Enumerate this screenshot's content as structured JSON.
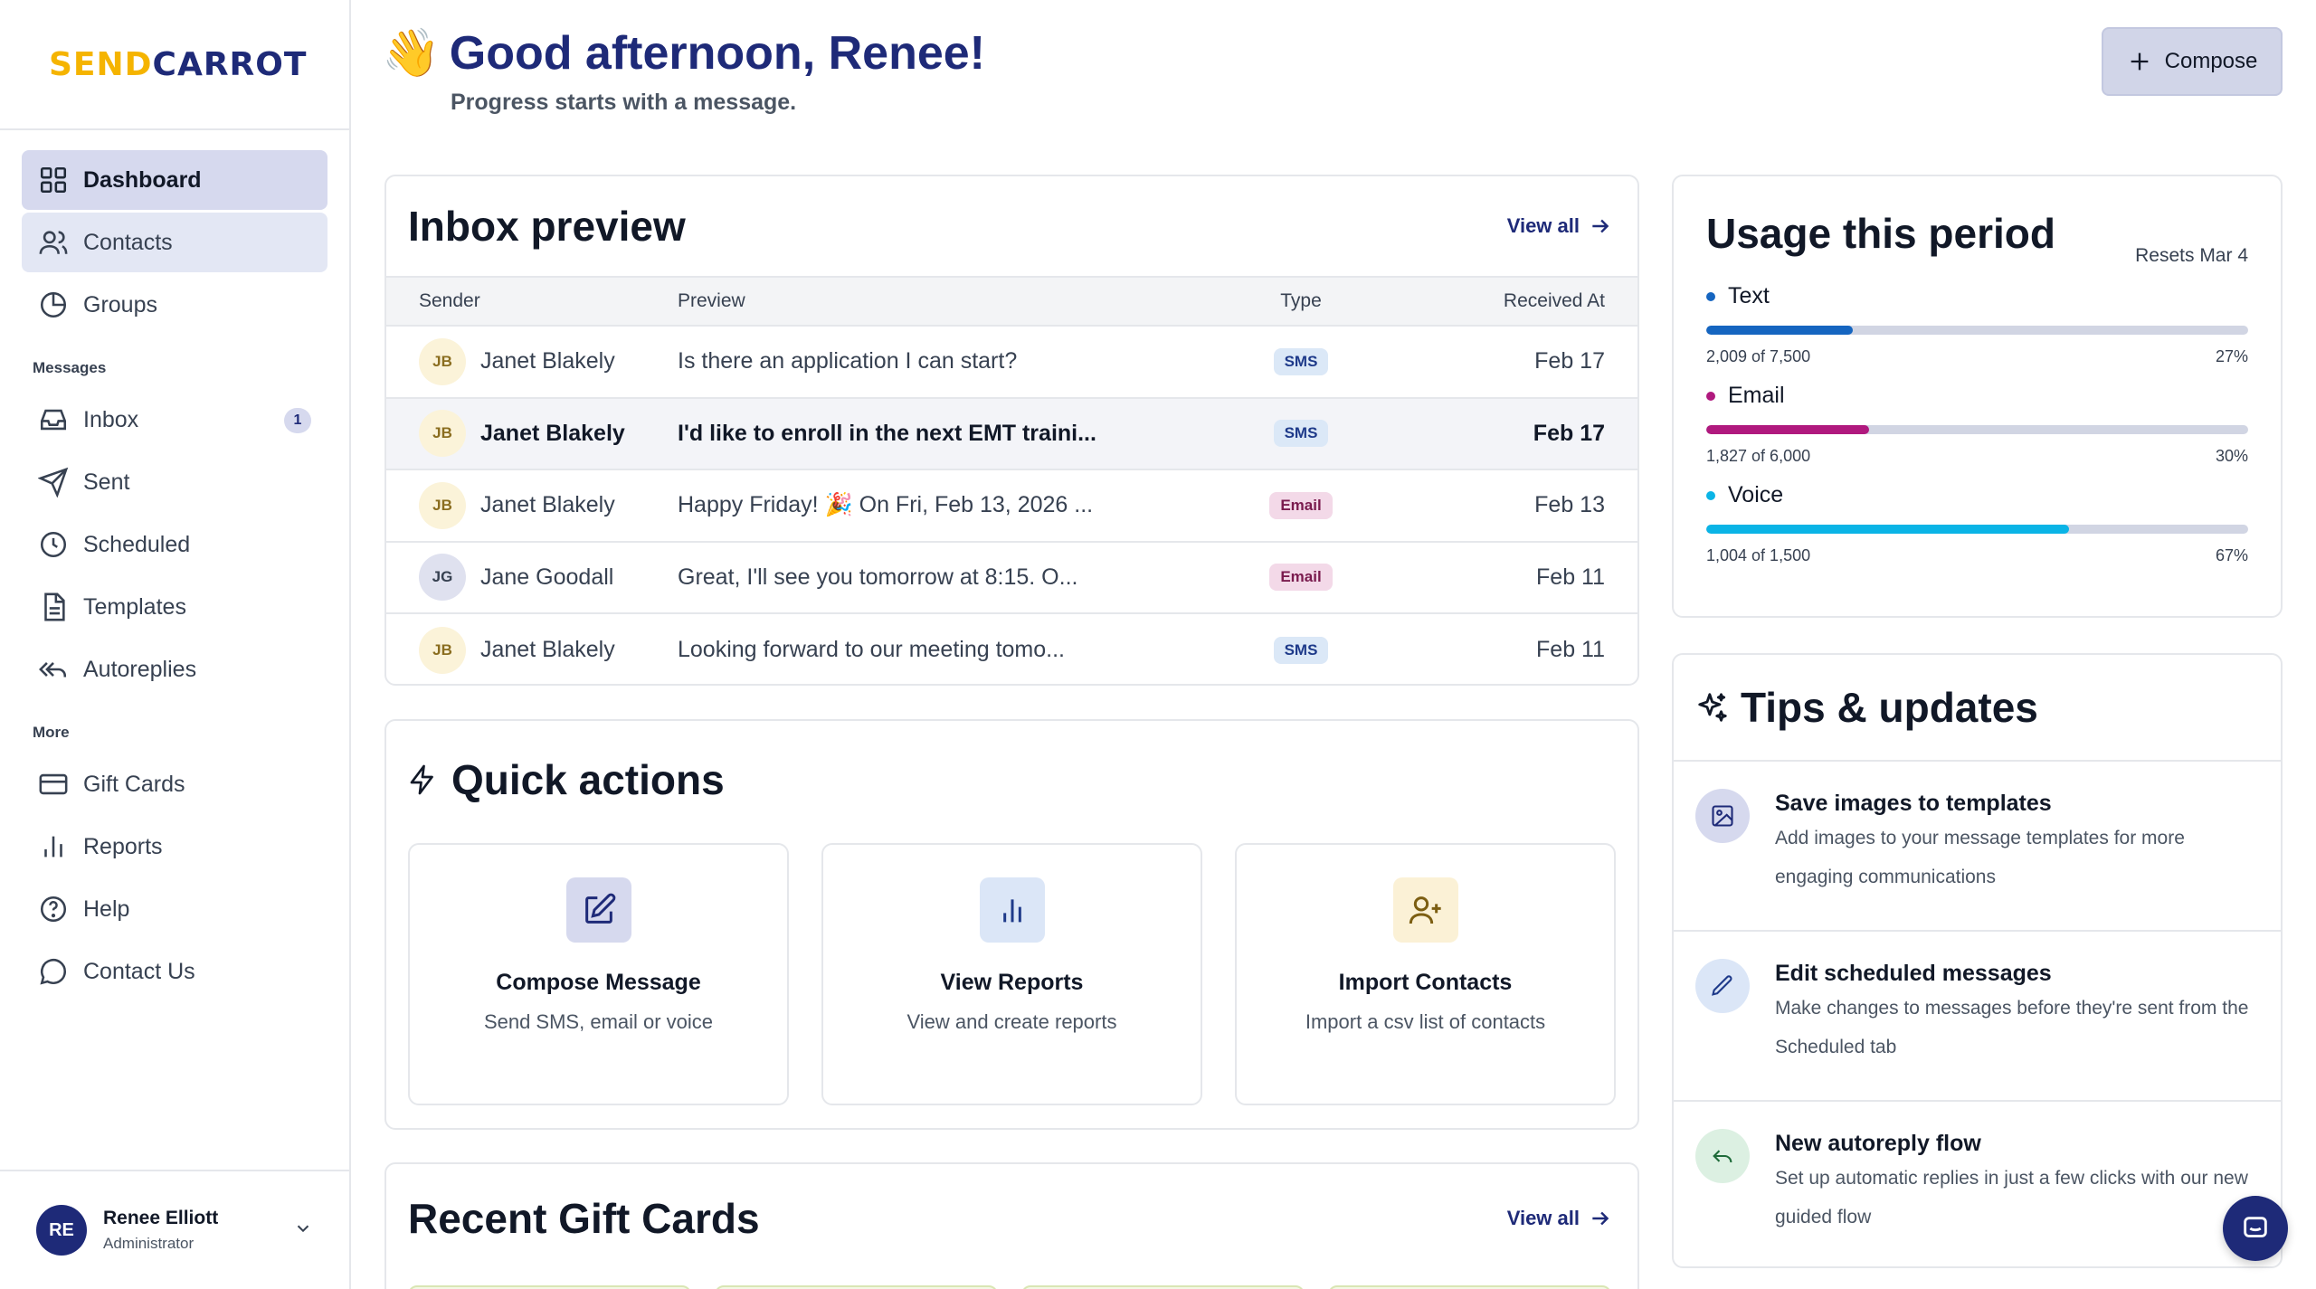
{
  "brand": {
    "logo_part1": "SEND",
    "logo_part2": "CARROT",
    "primary": "#1e2a78",
    "accent": "#f5b400"
  },
  "sidebar": {
    "items": [
      {
        "label": "Dashboard",
        "icon": "dashboard-icon"
      },
      {
        "label": "Contacts",
        "icon": "contacts-icon"
      },
      {
        "label": "Groups",
        "icon": "groups-icon"
      }
    ],
    "messages_heading": "Messages",
    "message_items": [
      {
        "label": "Inbox",
        "icon": "inbox-icon",
        "badge": "1"
      },
      {
        "label": "Sent",
        "icon": "send-icon"
      },
      {
        "label": "Scheduled",
        "icon": "clock-icon"
      },
      {
        "label": "Templates",
        "icon": "document-icon"
      },
      {
        "label": "Autoreplies",
        "icon": "reply-all-icon"
      }
    ],
    "more_heading": "More",
    "more_items": [
      {
        "label": "Gift Cards",
        "icon": "card-icon"
      },
      {
        "label": "Reports",
        "icon": "bar-chart-icon"
      },
      {
        "label": "Help",
        "icon": "help-icon"
      },
      {
        "label": "Contact Us",
        "icon": "chat-bubble-icon"
      }
    ],
    "user": {
      "initials": "RE",
      "name": "Renee Elliott",
      "role": "Administrator"
    }
  },
  "header": {
    "wave": "👋",
    "greeting": "Good afternoon, Renee!",
    "subtitle": "Progress starts with a message.",
    "compose_label": "Compose"
  },
  "inbox": {
    "title": "Inbox preview",
    "view_all": "View all",
    "columns": {
      "sender": "Sender",
      "preview": "Preview",
      "type": "Type",
      "received": "Received At"
    },
    "rows": [
      {
        "initials": "JB",
        "sender": "Janet Blakely",
        "preview": "Is there an application I can start?",
        "type": "SMS",
        "received": "Feb 17",
        "unread": false
      },
      {
        "initials": "JB",
        "sender": "Janet Blakely",
        "preview": "I'd like to enroll in the next EMT traini...",
        "type": "SMS",
        "received": "Feb 17",
        "unread": true
      },
      {
        "initials": "JB",
        "sender": "Janet Blakely",
        "preview": "Happy Friday! 🎉 On Fri, Feb 13, 2026 ...",
        "type": "Email",
        "received": "Feb 13",
        "unread": false
      },
      {
        "initials": "JG",
        "sender": "Jane Goodall",
        "preview": "Great, I'll see you tomorrow at 8:15. O...",
        "type": "Email",
        "received": "Feb 11",
        "unread": false
      },
      {
        "initials": "JB",
        "sender": "Janet Blakely",
        "preview": "Looking forward to our meeting tomo...",
        "type": "SMS",
        "received": "Feb 11",
        "unread": false
      }
    ]
  },
  "quick_actions": {
    "title": "Quick actions",
    "items": [
      {
        "title": "Compose Message",
        "desc": "Send SMS, email or voice",
        "icon": "edit-icon"
      },
      {
        "title": "View Reports",
        "desc": "View and create reports",
        "icon": "bar-chart-icon"
      },
      {
        "title": "Import Contacts",
        "desc": "Import a csv list of contacts",
        "icon": "add-user-icon"
      }
    ]
  },
  "gift_cards": {
    "title": "Recent Gift Cards",
    "view_all": "View all"
  },
  "usage": {
    "title": "Usage this period",
    "resets": "Resets Mar 4",
    "metrics": [
      {
        "label": "Text",
        "used": "2,009 of 7,500",
        "percent": "27%",
        "fraction": 0.27,
        "color": "#1565c0"
      },
      {
        "label": "Email",
        "used": "1,827 of 6,000",
        "percent": "30%",
        "fraction": 0.3,
        "color": "#b0197e"
      },
      {
        "label": "Voice",
        "used": "1,004 of 1,500",
        "percent": "67%",
        "fraction": 0.67,
        "color": "#0ab4e6"
      }
    ]
  },
  "tips": {
    "title": "Tips & updates",
    "items": [
      {
        "title": "Save images to templates",
        "desc": "Add images to your message templates for more engaging communications",
        "icon": "image-icon"
      },
      {
        "title": "Edit scheduled messages",
        "desc": "Make changes to messages before they're sent from the Scheduled tab",
        "icon": "pencil-icon"
      },
      {
        "title": "New autoreply flow",
        "desc": "Set up automatic replies in just a few clicks with our new guided flow",
        "icon": "reply-icon"
      }
    ]
  }
}
